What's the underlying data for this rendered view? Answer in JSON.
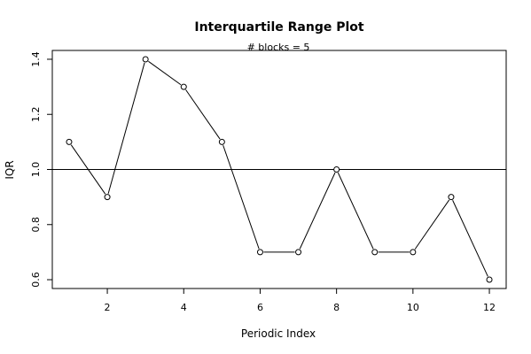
{
  "chart_data": {
    "type": "line",
    "title": "Interquartile Range Plot",
    "subtitle": "# blocks =  5",
    "xlabel": "Periodic Index",
    "ylabel": "IQR",
    "x": [
      1,
      2,
      3,
      4,
      5,
      6,
      7,
      8,
      9,
      10,
      11,
      12
    ],
    "y": [
      1.1,
      0.9,
      1.4,
      1.3,
      1.1,
      0.7,
      0.7,
      1.0,
      0.7,
      0.7,
      0.9,
      0.6
    ],
    "xlim": [
      0.56,
      12.44
    ],
    "ylim": [
      0.568,
      1.432
    ],
    "x_ticks": [
      2,
      4,
      6,
      8,
      10,
      12
    ],
    "x_tick_labels": [
      "2",
      "4",
      "6",
      "8",
      "10",
      "12"
    ],
    "y_ticks": [
      0.6,
      0.8,
      1.0,
      1.2,
      1.4
    ],
    "y_tick_labels": [
      "0.6",
      "0.8",
      "1.0",
      "1.2",
      "1.4"
    ],
    "reference_line": {
      "y": 1.0
    },
    "markers": "open-circle",
    "grid": false,
    "line_color": "#000000"
  }
}
